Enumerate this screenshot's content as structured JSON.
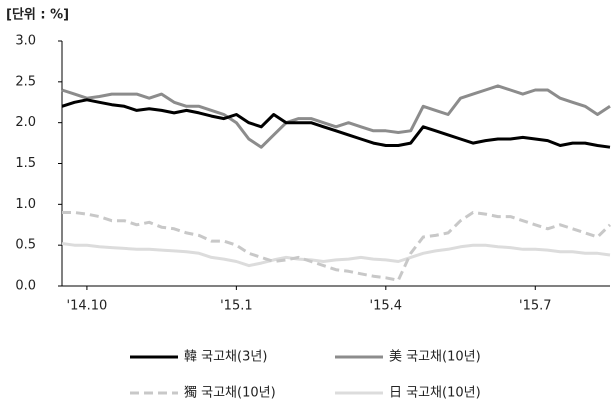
{
  "chart_data": {
    "type": "line",
    "unit_label": "[단위 : %]",
    "categories": [
      null,
      null,
      "'14.10",
      null,
      null,
      null,
      null,
      null,
      null,
      null,
      null,
      null,
      null,
      null,
      "'15.1",
      null,
      null,
      null,
      null,
      null,
      null,
      null,
      null,
      null,
      null,
      null,
      "'15.4",
      null,
      null,
      null,
      null,
      null,
      null,
      null,
      null,
      null,
      null,
      null,
      "'15.7",
      null,
      null,
      null,
      null,
      null,
      null
    ],
    "ylim": [
      0,
      3
    ],
    "yticks": [
      {
        "value": 0,
        "label": "0.0"
      },
      {
        "value": 0.5,
        "label": "0.5"
      },
      {
        "value": 1,
        "label": "1.0"
      },
      {
        "value": 1.5,
        "label": "1.5"
      },
      {
        "value": 2,
        "label": "2.0"
      },
      {
        "value": 2.5,
        "label": "2.5"
      },
      {
        "value": 3,
        "label": "3.0"
      }
    ],
    "grid": false,
    "series": [
      {
        "name": "韓 국고채(3년)",
        "color": "#000000",
        "dashed": false,
        "values": [
          2.2,
          2.25,
          2.28,
          2.25,
          2.22,
          2.2,
          2.15,
          2.17,
          2.15,
          2.12,
          2.15,
          2.12,
          2.08,
          2.05,
          2.1,
          2.0,
          1.95,
          2.1,
          2.0,
          2.0,
          2.0,
          1.95,
          1.9,
          1.85,
          1.8,
          1.75,
          1.72,
          1.72,
          1.75,
          1.95,
          1.9,
          1.85,
          1.8,
          1.75,
          1.78,
          1.8,
          1.8,
          1.82,
          1.8,
          1.78,
          1.72,
          1.75,
          1.75,
          1.72,
          1.7
        ]
      },
      {
        "name": "美 국고채(10년)",
        "color": "#8c8c8c",
        "dashed": false,
        "values": [
          2.4,
          2.35,
          2.3,
          2.32,
          2.35,
          2.35,
          2.35,
          2.3,
          2.35,
          2.25,
          2.2,
          2.2,
          2.15,
          2.1,
          2.0,
          1.8,
          1.7,
          1.85,
          2.0,
          2.05,
          2.05,
          2.0,
          1.95,
          2.0,
          1.95,
          1.9,
          1.9,
          1.88,
          1.9,
          2.2,
          2.15,
          2.1,
          2.3,
          2.35,
          2.4,
          2.45,
          2.4,
          2.35,
          2.4,
          2.4,
          2.3,
          2.25,
          2.2,
          2.1,
          2.2
        ]
      },
      {
        "name": "獨 국고채(10년)",
        "color": "#c8c8c8",
        "dashed": true,
        "values": [
          0.9,
          0.9,
          0.88,
          0.85,
          0.8,
          0.8,
          0.75,
          0.78,
          0.72,
          0.7,
          0.65,
          0.62,
          0.55,
          0.55,
          0.5,
          0.4,
          0.35,
          0.3,
          0.32,
          0.35,
          0.3,
          0.25,
          0.2,
          0.18,
          0.15,
          0.12,
          0.1,
          0.07,
          0.4,
          0.6,
          0.62,
          0.65,
          0.8,
          0.9,
          0.88,
          0.85,
          0.85,
          0.8,
          0.75,
          0.7,
          0.75,
          0.7,
          0.65,
          0.6,
          0.75
        ]
      },
      {
        "name": "日 국고채(10년)",
        "color": "#dcdcdc",
        "dashed": false,
        "values": [
          0.52,
          0.5,
          0.5,
          0.48,
          0.47,
          0.46,
          0.45,
          0.45,
          0.44,
          0.43,
          0.42,
          0.4,
          0.35,
          0.33,
          0.3,
          0.25,
          0.28,
          0.32,
          0.35,
          0.33,
          0.32,
          0.3,
          0.32,
          0.33,
          0.35,
          0.33,
          0.32,
          0.3,
          0.35,
          0.4,
          0.43,
          0.45,
          0.48,
          0.5,
          0.5,
          0.48,
          0.47,
          0.45,
          0.45,
          0.44,
          0.42,
          0.42,
          0.4,
          0.4,
          0.38
        ]
      }
    ]
  }
}
